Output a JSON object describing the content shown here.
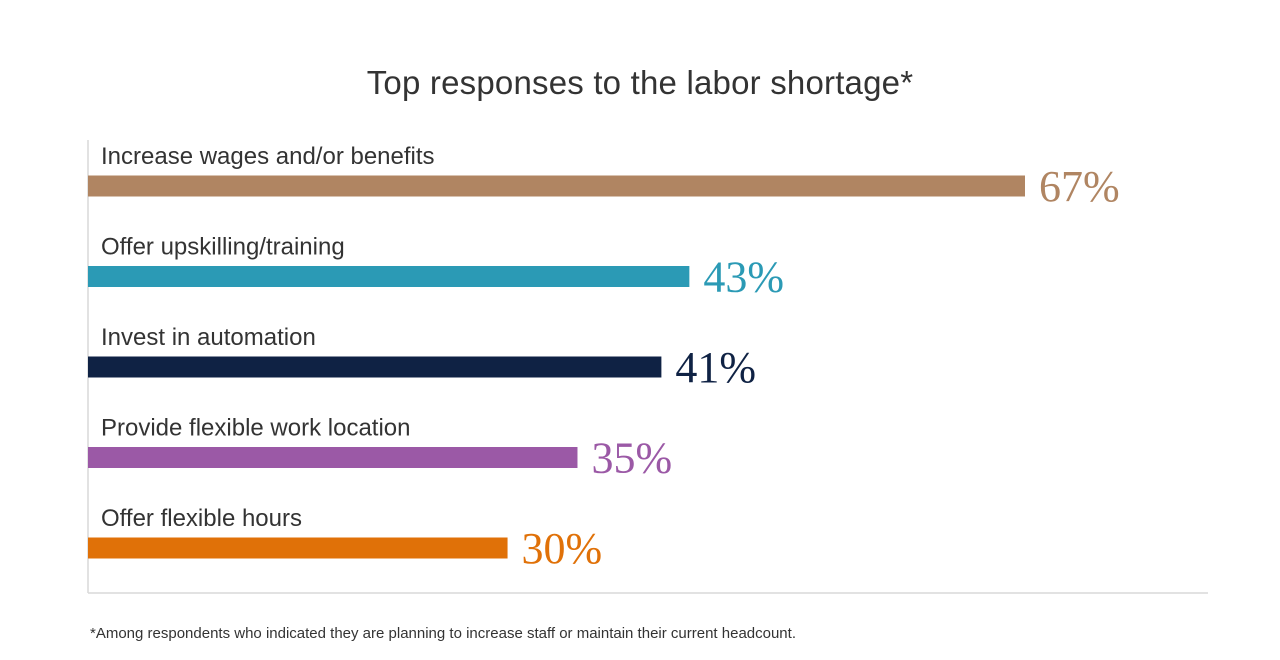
{
  "chart_data": {
    "type": "bar",
    "orientation": "horizontal",
    "title": "Top responses to the labor shortage*",
    "categories": [
      "Increase wages and/or benefits",
      "Offer upskilling/training",
      "Invest in automation",
      "Provide flexible work location",
      "Offer flexible hours"
    ],
    "values": [
      67,
      43,
      41,
      35,
      30
    ],
    "value_labels": [
      "67%",
      "43%",
      "41%",
      "35%",
      "30%"
    ],
    "colors": [
      "#b08562",
      "#2b9ab5",
      "#0f2244",
      "#9b59a6",
      "#e07108"
    ],
    "xlim": [
      0,
      80
    ],
    "grid": false,
    "legend": "none"
  },
  "footnote": "*Among respondents who indicated they are planning to increase staff or maintain their current headcount."
}
